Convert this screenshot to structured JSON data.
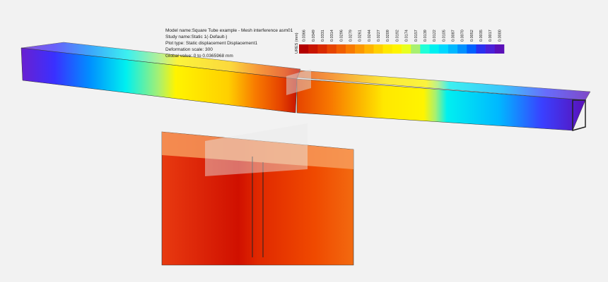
{
  "info": {
    "lines": [
      "Model name:Square Tube example - Mesh interference asm01",
      "Study name:Static 1(-Default-)",
      "Plot type: Static displacement Displacement1",
      "Deformation scale: 300",
      "Global value: 0 to 0.0365968 mm"
    ]
  },
  "legend": {
    "title": "URES (mm)",
    "items": [
      {
        "label": "0.0366",
        "color": "#b30000"
      },
      {
        "label": "0.0349",
        "color": "#c81400"
      },
      {
        "label": "0.0331",
        "color": "#d92a00"
      },
      {
        "label": "0.0314",
        "color": "#e64400"
      },
      {
        "label": "0.0296",
        "color": "#f05e00"
      },
      {
        "label": "0.0279",
        "color": "#f87a00"
      },
      {
        "label": "0.0261",
        "color": "#fc9800"
      },
      {
        "label": "0.0244",
        "color": "#ffb400"
      },
      {
        "label": "0.0227",
        "color": "#ffd000"
      },
      {
        "label": "0.0209",
        "color": "#ffe800"
      },
      {
        "label": "0.0192",
        "color": "#fff400"
      },
      {
        "label": "0.0174",
        "color": "#e8ff20"
      },
      {
        "label": "0.0157",
        "color": "#a8f070"
      },
      {
        "label": "0.0139",
        "color": "#20ffd8"
      },
      {
        "label": "0.0122",
        "color": "#00f0f0"
      },
      {
        "label": "0.0105",
        "color": "#00d8ff"
      },
      {
        "label": "0.0087",
        "color": "#00b8ff"
      },
      {
        "label": "0.0070",
        "color": "#0090ff"
      },
      {
        "label": "0.0052",
        "color": "#0060ff"
      },
      {
        "label": "0.0035",
        "color": "#2a30f0"
      },
      {
        "label": "0.0017",
        "color": "#4a20d8"
      },
      {
        "label": "0.0000",
        "color": "#5a10b8"
      }
    ]
  }
}
